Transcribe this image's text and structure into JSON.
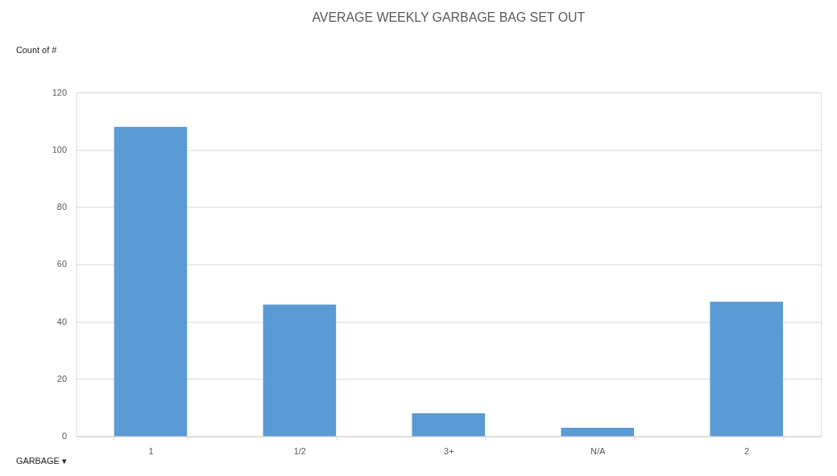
{
  "chart_data": {
    "type": "bar",
    "title": "AVERAGE WEEKLY GARBAGE BAG SET OUT",
    "categories": [
      "1",
      "1/2",
      "3+",
      "N/A",
      "2"
    ],
    "values": [
      108,
      46,
      8,
      3,
      47
    ],
    "color": "#5b9bd5",
    "ylim": [
      0,
      120
    ],
    "yticks": [
      0,
      20,
      40,
      60,
      80,
      100,
      120
    ],
    "grid": "y",
    "annotations": [
      "Count of #",
      "GARBAGE ▾"
    ]
  }
}
